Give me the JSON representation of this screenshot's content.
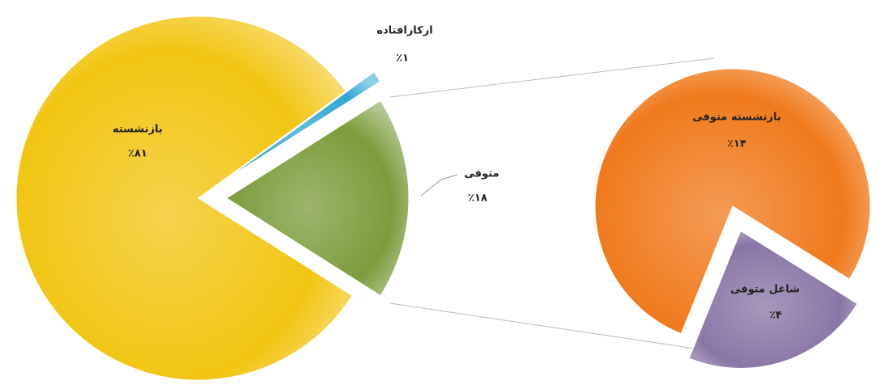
{
  "chart_data": [
    {
      "type": "pie",
      "categories": [
        "بازنشسته",
        "ازکارافتاده",
        "متوفی"
      ],
      "values": [
        81,
        1,
        18
      ],
      "value_labels": [
        "٪۸۱",
        "٪۱",
        "٪۱۸"
      ],
      "colors": [
        "#f2c512",
        "#2fa6d4",
        "#7c9c3c"
      ]
    },
    {
      "type": "pie",
      "categories": [
        "بازنشسته متوفی",
        "شاغل متوفی"
      ],
      "values": [
        14,
        4
      ],
      "value_labels": [
        "٪۱۴",
        "٪۴"
      ],
      "colors": [
        "#f07a1c",
        "#8a76a6"
      ]
    }
  ]
}
